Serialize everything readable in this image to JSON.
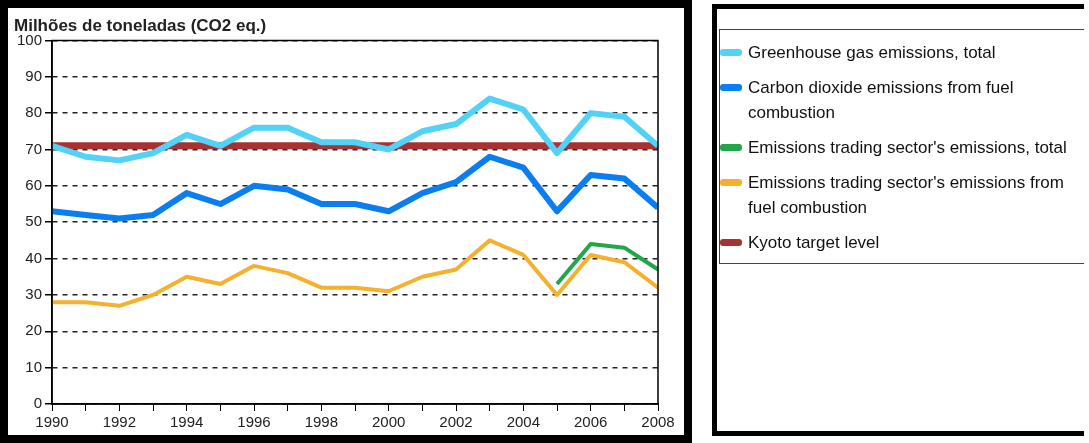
{
  "chart_data": {
    "type": "line",
    "title": "Milhões de toneladas (CO2 eq.)",
    "x": [
      1990,
      1991,
      1992,
      1993,
      1994,
      1995,
      1996,
      1997,
      1998,
      1999,
      2000,
      2001,
      2002,
      2003,
      2004,
      2005,
      2006,
      2007,
      2008
    ],
    "series": [
      {
        "name": "Greenhouse gas emissions, total",
        "color": "#52d2f7",
        "values": [
          71,
          68,
          67,
          69,
          74,
          71,
          76,
          76,
          72,
          72,
          70,
          75,
          77,
          84,
          81,
          69,
          80,
          79,
          71
        ]
      },
      {
        "name": "Carbon dioxide emissions from fuel combustion",
        "color": "#0a7ef0",
        "values": [
          53,
          52,
          51,
          52,
          58,
          55,
          60,
          59,
          55,
          55,
          53,
          58,
          61,
          68,
          65,
          53,
          63,
          62,
          54
        ]
      },
      {
        "name": "Emissions trading sector's emissions, total",
        "color": "#22a64a",
        "x": [
          2005,
          2006,
          2007,
          2008
        ],
        "values": [
          33,
          44,
          43,
          37
        ]
      },
      {
        "name": "Emissions trading sector's emissions from fuel combustion",
        "color": "#f5b02e",
        "values": [
          28,
          28,
          27,
          30,
          35,
          33,
          38,
          36,
          32,
          32,
          31,
          35,
          37,
          45,
          41,
          30,
          41,
          39,
          32
        ]
      },
      {
        "name": "Kyoto target level",
        "color": "#a83232",
        "values": [
          71,
          71,
          71,
          71,
          71,
          71,
          71,
          71,
          71,
          71,
          71,
          71,
          71,
          71,
          71,
          71,
          71,
          71,
          71
        ]
      }
    ],
    "xlim": [
      1990,
      2008
    ],
    "xticks": [
      1990,
      {
        "value": 1991,
        "label": null
      },
      1992,
      {
        "value": 1993,
        "label": null
      },
      1994,
      {
        "value": 1995,
        "label": null
      },
      1996,
      {
        "value": 1997,
        "label": null
      },
      1998,
      {
        "value": 1999,
        "label": null
      },
      2000,
      {
        "value": 2001,
        "label": null
      },
      2002,
      {
        "value": 2003,
        "label": null
      },
      2004,
      {
        "value": 2005,
        "label": null
      },
      2006,
      {
        "value": 2007,
        "label": null
      },
      2008
    ],
    "ylim": [
      0,
      100
    ],
    "yticks": [
      0,
      10,
      20,
      30,
      40,
      50,
      60,
      70,
      80,
      90,
      100
    ],
    "grid": "y",
    "legend": "right",
    "marker": "none",
    "line_style": "solid"
  }
}
